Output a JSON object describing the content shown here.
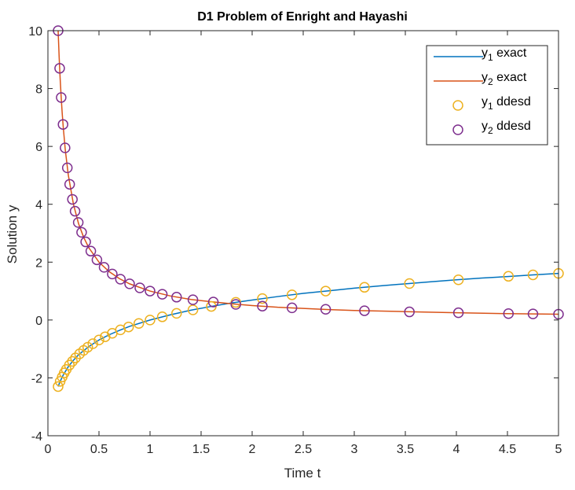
{
  "chart_data": {
    "type": "line",
    "title": "D1 Problem of Enright and Hayashi",
    "xlabel": "Time t",
    "ylabel": "Solution y",
    "xlim": [
      0,
      5
    ],
    "ylim": [
      -4,
      10
    ],
    "xticks": [
      "0",
      "0.5",
      "1",
      "1.5",
      "2",
      "2.5",
      "3",
      "3.5",
      "4",
      "4.5",
      "5"
    ],
    "yticks": [
      "-4",
      "-2",
      "0",
      "2",
      "4",
      "6",
      "8",
      "10"
    ],
    "grid": false,
    "legend_position": "top-right",
    "legend": [
      {
        "base": "y",
        "sub": "1",
        "text": " exact",
        "kind": "line",
        "color": "#0072BD"
      },
      {
        "base": "y",
        "sub": "2",
        "text": " exact",
        "kind": "line",
        "color": "#D95319"
      },
      {
        "base": "y",
        "sub": "1",
        "text": " ddesd",
        "kind": "marker",
        "color": "#EDB120"
      },
      {
        "base": "y",
        "sub": "2",
        "text": " ddesd",
        "kind": "marker",
        "color": "#7E2F8E"
      }
    ],
    "series": [
      {
        "kind": "line",
        "color": "#0072BD",
        "x": [
          0.1,
          0.12,
          0.15,
          0.2,
          0.25,
          0.3,
          0.4,
          0.5,
          0.6,
          0.7,
          0.8,
          1.0,
          1.2,
          1.4,
          1.6,
          1.8,
          2.0,
          2.25,
          2.5,
          2.75,
          3.0,
          3.25,
          3.5,
          3.75,
          4.0,
          4.25,
          4.5,
          4.75,
          5.0
        ],
        "y": [
          -2.3,
          -2.12,
          -1.9,
          -1.61,
          -1.39,
          -1.2,
          -0.92,
          -0.69,
          -0.51,
          -0.36,
          -0.22,
          0.0,
          0.18,
          0.34,
          0.47,
          0.59,
          0.69,
          0.81,
          0.92,
          1.01,
          1.1,
          1.18,
          1.25,
          1.32,
          1.39,
          1.45,
          1.5,
          1.56,
          1.61
        ]
      },
      {
        "kind": "line",
        "color": "#D95319",
        "x": [
          0.1,
          0.11,
          0.12,
          0.13,
          0.14,
          0.15,
          0.17,
          0.2,
          0.25,
          0.3,
          0.35,
          0.4,
          0.5,
          0.6,
          0.7,
          0.8,
          1.0,
          1.2,
          1.4,
          1.6,
          1.8,
          2.0,
          2.25,
          2.5,
          2.75,
          3.0,
          3.5,
          4.0,
          4.5,
          5.0
        ],
        "y": [
          10.0,
          9.09,
          8.33,
          7.69,
          7.14,
          6.67,
          5.88,
          5.0,
          4.0,
          3.33,
          2.86,
          2.5,
          2.0,
          1.67,
          1.43,
          1.25,
          1.0,
          0.83,
          0.71,
          0.63,
          0.56,
          0.5,
          0.44,
          0.4,
          0.36,
          0.33,
          0.29,
          0.25,
          0.22,
          0.2
        ]
      },
      {
        "kind": "marker",
        "color": "#EDB120",
        "x": [
          0.1,
          0.12,
          0.14,
          0.16,
          0.18,
          0.21,
          0.24,
          0.27,
          0.31,
          0.35,
          0.39,
          0.44,
          0.5,
          0.56,
          0.63,
          0.71,
          0.79,
          0.89,
          1.0,
          1.12,
          1.26,
          1.42,
          1.6,
          1.84,
          2.1,
          2.39,
          2.72,
          3.1,
          3.54,
          4.02,
          4.51,
          4.75,
          5.0
        ],
        "y": [
          -2.3,
          -2.12,
          -1.97,
          -1.83,
          -1.71,
          -1.56,
          -1.43,
          -1.31,
          -1.17,
          -1.05,
          -0.94,
          -0.82,
          -0.69,
          -0.58,
          -0.46,
          -0.34,
          -0.24,
          -0.12,
          0.0,
          0.11,
          0.23,
          0.35,
          0.47,
          0.61,
          0.74,
          0.87,
          1.0,
          1.13,
          1.26,
          1.39,
          1.51,
          1.56,
          1.61
        ]
      },
      {
        "kind": "marker",
        "color": "#7E2F8E",
        "x": [
          0.1,
          0.115,
          0.13,
          0.148,
          0.168,
          0.19,
          0.213,
          0.24,
          0.266,
          0.297,
          0.33,
          0.37,
          0.42,
          0.48,
          0.55,
          0.63,
          0.71,
          0.8,
          0.9,
          1.0,
          1.12,
          1.26,
          1.42,
          1.62,
          1.84,
          2.1,
          2.39,
          2.72,
          3.1,
          3.54,
          4.02,
          4.51,
          4.75,
          5.0
        ],
        "y": [
          10.0,
          8.7,
          7.69,
          6.76,
          5.95,
          5.26,
          4.69,
          4.17,
          3.76,
          3.37,
          3.03,
          2.7,
          2.38,
          2.08,
          1.82,
          1.59,
          1.41,
          1.25,
          1.11,
          1.0,
          0.89,
          0.79,
          0.7,
          0.62,
          0.54,
          0.48,
          0.42,
          0.37,
          0.32,
          0.28,
          0.25,
          0.22,
          0.21,
          0.2
        ]
      }
    ]
  }
}
